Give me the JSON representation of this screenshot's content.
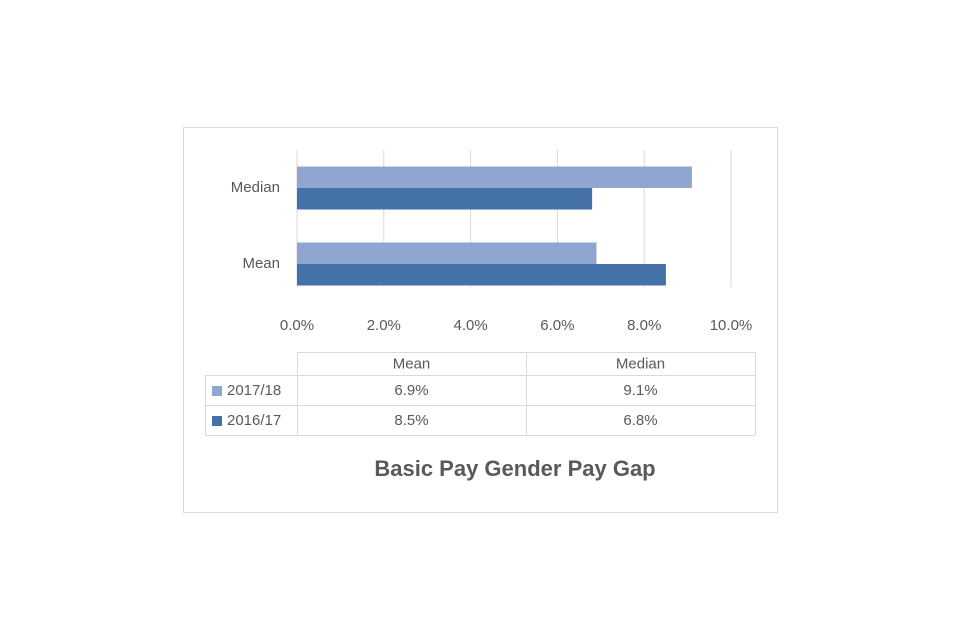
{
  "chart_data": {
    "type": "bar",
    "orientation": "horizontal",
    "title": "Basic Pay Gender Pay Gap",
    "categories": [
      "Mean",
      "Median"
    ],
    "series": [
      {
        "name": "2017/18",
        "color": "#8fa7d0",
        "values": [
          6.9,
          9.1
        ],
        "value_labels": [
          "6.9%",
          "9.1%"
        ]
      },
      {
        "name": "2016/17",
        "color": "#4472a8",
        "values": [
          8.5,
          6.8
        ],
        "value_labels": [
          "8.5%",
          "6.8%"
        ]
      }
    ],
    "xlim": [
      0,
      10
    ],
    "xticks": [
      {
        "value": 0,
        "label": "0.0%"
      },
      {
        "value": 2,
        "label": "2.0%"
      },
      {
        "value": 4,
        "label": "4.0%"
      },
      {
        "value": 6,
        "label": "6.0%"
      },
      {
        "value": 8,
        "label": "8.0%"
      },
      {
        "value": 10,
        "label": "10.0%"
      }
    ],
    "grid": true,
    "data_table": true
  }
}
